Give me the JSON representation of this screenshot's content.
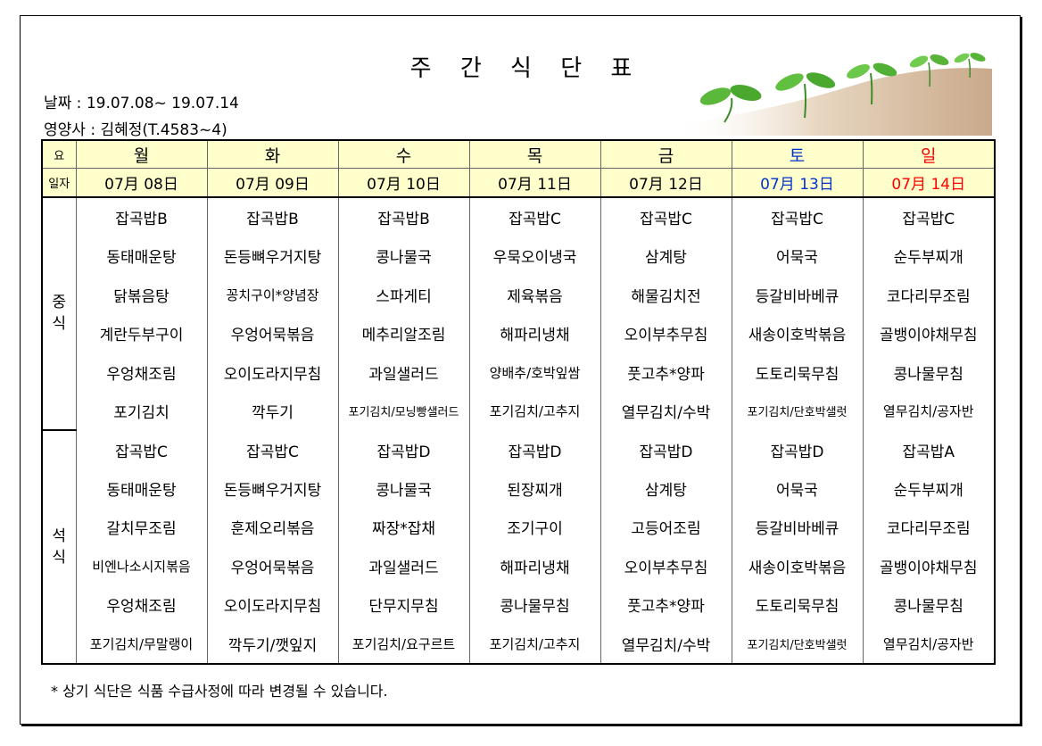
{
  "title": "주 간 식 단 표",
  "date_line": "날짜 : 19.07.08~ 19.07.14",
  "nutritionist_line": "영양사 : 김혜정(T.4583~4)",
  "header": {
    "day_label": "요",
    "date_label": "일자",
    "days": [
      "월",
      "화",
      "수",
      "목",
      "금",
      "토",
      "일"
    ],
    "dates": [
      "07月 08日",
      "07月 09日",
      "07月 10日",
      "07月 11日",
      "07月 12日",
      "07月 13日",
      "07月 14日"
    ]
  },
  "lunch": {
    "label_1": "중",
    "label_2": "식",
    "rows": [
      [
        "잡곡밥B",
        "잡곡밥B",
        "잡곡밥B",
        "잡곡밥C",
        "잡곡밥C",
        "잡곡밥C",
        "잡곡밥C"
      ],
      [
        "동태매운탕",
        "돈등뼈우거지탕",
        "콩나물국",
        "우묵오이냉국",
        "삼계탕",
        "어묵국",
        "순두부찌개"
      ],
      [
        "닭볶음탕",
        "꽁치구이*양념장",
        "스파게티",
        "제육볶음",
        "해물김치전",
        "등갈비바베큐",
        "코다리무조림"
      ],
      [
        "계란두부구이",
        "우엉어묵볶음",
        "메추리알조림",
        "해파리냉채",
        "오이부추무침",
        "새송이호박볶음",
        "골뱅이야채무침"
      ],
      [
        "우엉채조림",
        "오이도라지무침",
        "과일샐러드",
        "양배추/호박잎쌈",
        "풋고추*양파",
        "도토리묵무침",
        "콩나물무침"
      ],
      [
        "포기김치",
        "깍두기",
        "포기김치/모닝빵샐러드",
        "포기김치/고추지",
        "열무김치/수박",
        "포기김치/단호박샐럿",
        "열무김치/공자반"
      ]
    ]
  },
  "dinner": {
    "label_1": "석",
    "label_2": "식",
    "rows": [
      [
        "잡곡밥C",
        "잡곡밥C",
        "잡곡밥D",
        "잡곡밥D",
        "잡곡밥D",
        "잡곡밥D",
        "잡곡밥A"
      ],
      [
        "동태매운탕",
        "돈등뼈우거지탕",
        "콩나물국",
        "된장찌개",
        "삼계탕",
        "어묵국",
        "순두부찌개"
      ],
      [
        "갈치무조림",
        "훈제오리볶음",
        "짜장*잡채",
        "조기구이",
        "고등어조림",
        "등갈비바베큐",
        "코다리무조림"
      ],
      [
        "비엔나소시지볶음",
        "우엉어묵볶음",
        "과일샐러드",
        "해파리냉채",
        "오이부추무침",
        "새송이호박볶음",
        "골뱅이야채무침"
      ],
      [
        "우엉채조림",
        "오이도라지무침",
        "단무지무침",
        "콩나물무침",
        "풋고추*양파",
        "도토리묵무침",
        "콩나물무침"
      ],
      [
        "포기김치/무말랭이",
        "깍두기/깻잎지",
        "포기김치/요구르트",
        "포기김치/고추지",
        "열무김치/수박",
        "포기김치/단호박샐럿",
        "열무김치/공자반"
      ]
    ]
  },
  "note": "* 상기 식단은 식품 수급사정에 따라 변경될 수 있습니다.",
  "colors": {
    "header_bg": "#ffffcc",
    "saturday": "#0033cc",
    "sunday": "#ff0000"
  }
}
